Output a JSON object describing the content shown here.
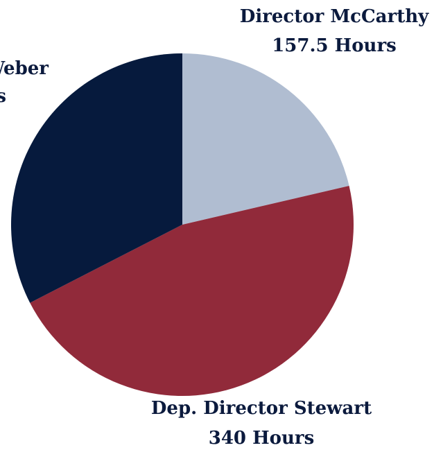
{
  "chart_data": {
    "type": "pie",
    "slices": [
      {
        "name": "Director McCarthy",
        "value": 157.5,
        "value_label": "157.5 Hours",
        "color": "#b0bdd1"
      },
      {
        "name": "Dep. Director Stewart",
        "value": 340,
        "value_label": "340 Hours",
        "color": "#912a3a"
      },
      {
        "name": "Weber",
        "value": 240,
        "value_label": "s",
        "color": "#061a3d"
      }
    ],
    "start_angle_deg": 0,
    "direction": "clockwise",
    "legend": "none",
    "label_color": "#0b1a3d"
  }
}
